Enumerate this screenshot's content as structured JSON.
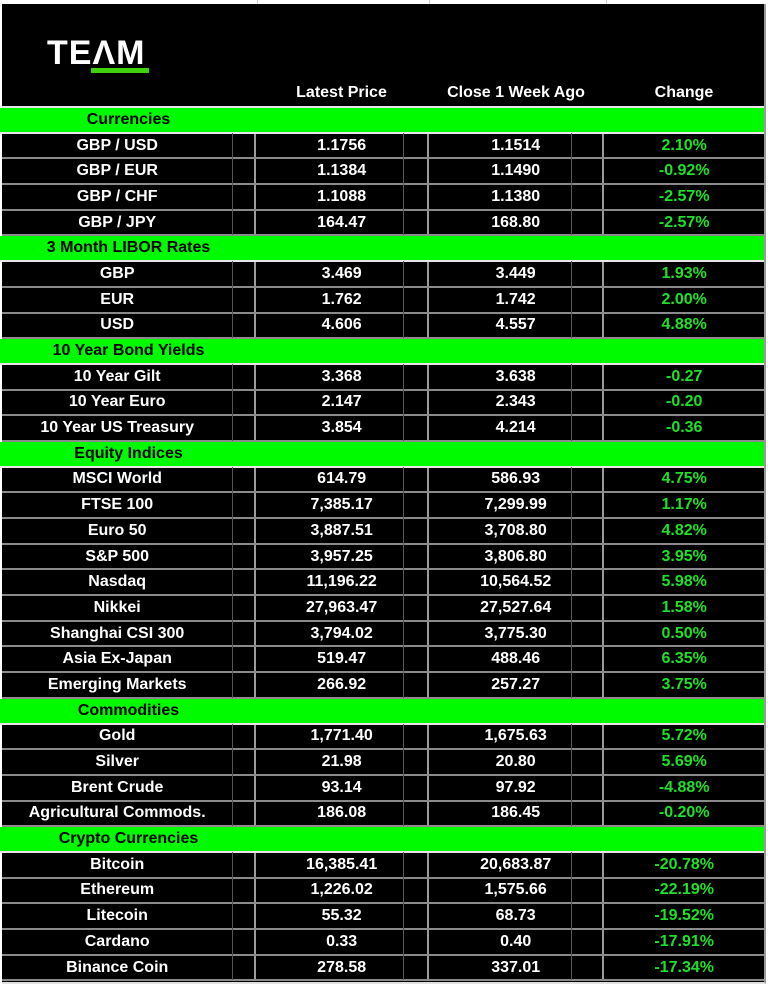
{
  "brand": {
    "logo_text": "TEΛM",
    "underline_color": "#3dd20c"
  },
  "colors": {
    "background": "#000000",
    "section_green": "#00fa00",
    "change_green": "#1ee128",
    "text_white": "#ffffff"
  },
  "chart_data": {
    "type": "table",
    "columns": [
      "",
      "Latest Price",
      "Close 1 Week Ago",
      "Change"
    ],
    "sections": [
      {
        "title": "Currencies",
        "rows": [
          {
            "label": "GBP / USD",
            "latest": "1.1756",
            "week": "1.1514",
            "change": "2.10%"
          },
          {
            "label": "GBP / EUR",
            "latest": "1.1384",
            "week": "1.1490",
            "change": "-0.92%"
          },
          {
            "label": "GBP / CHF",
            "latest": "1.1088",
            "week": "1.1380",
            "change": "-2.57%"
          },
          {
            "label": "GBP / JPY",
            "latest": "164.47",
            "week": "168.80",
            "change": "-2.57%"
          }
        ]
      },
      {
        "title": "3 Month LIBOR Rates",
        "rows": [
          {
            "label": "GBP",
            "latest": "3.469",
            "week": "3.449",
            "change": "1.93%"
          },
          {
            "label": "EUR",
            "latest": "1.762",
            "week": "1.742",
            "change": "2.00%"
          },
          {
            "label": "USD",
            "latest": "4.606",
            "week": "4.557",
            "change": "4.88%"
          }
        ]
      },
      {
        "title": "10 Year Bond Yields",
        "rows": [
          {
            "label": "10 Year Gilt",
            "latest": "3.368",
            "week": "3.638",
            "change": "-0.27"
          },
          {
            "label": "10 Year Euro",
            "latest": "2.147",
            "week": "2.343",
            "change": "-0.20"
          },
          {
            "label": "10 Year US Treasury",
            "latest": "3.854",
            "week": "4.214",
            "change": "-0.36"
          }
        ]
      },
      {
        "title": "Equity Indices",
        "rows": [
          {
            "label": "MSCI World",
            "latest": "614.79",
            "week": "586.93",
            "change": "4.75%"
          },
          {
            "label": "FTSE 100",
            "latest": "7,385.17",
            "week": "7,299.99",
            "change": "1.17%"
          },
          {
            "label": "Euro 50",
            "latest": "3,887.51",
            "week": "3,708.80",
            "change": "4.82%"
          },
          {
            "label": "S&P 500",
            "latest": "3,957.25",
            "week": "3,806.80",
            "change": "3.95%"
          },
          {
            "label": "Nasdaq",
            "latest": "11,196.22",
            "week": "10,564.52",
            "change": "5.98%"
          },
          {
            "label": "Nikkei",
            "latest": "27,963.47",
            "week": "27,527.64",
            "change": "1.58%"
          },
          {
            "label": "Shanghai CSI 300",
            "latest": "3,794.02",
            "week": "3,775.30",
            "change": "0.50%"
          },
          {
            "label": "Asia Ex-Japan",
            "latest": "519.47",
            "week": "488.46",
            "change": "6.35%"
          },
          {
            "label": "Emerging Markets",
            "latest": "266.92",
            "week": "257.27",
            "change": "3.75%"
          }
        ]
      },
      {
        "title": "Commodities",
        "rows": [
          {
            "label": "Gold",
            "latest": "1,771.40",
            "week": "1,675.63",
            "change": "5.72%"
          },
          {
            "label": "Silver",
            "latest": "21.98",
            "week": "20.80",
            "change": "5.69%"
          },
          {
            "label": "Brent Crude",
            "latest": "93.14",
            "week": "97.92",
            "change": "-4.88%"
          },
          {
            "label": "Agricultural Commods.",
            "latest": "186.08",
            "week": "186.45",
            "change": "-0.20%"
          }
        ]
      },
      {
        "title": "Crypto Currencies",
        "rows": [
          {
            "label": "Bitcoin",
            "latest": "16,385.41",
            "week": "20,683.87",
            "change": "-20.78%"
          },
          {
            "label": "Ethereum",
            "latest": "1,226.02",
            "week": "1,575.66",
            "change": "-22.19%"
          },
          {
            "label": "Litecoin",
            "latest": "55.32",
            "week": "68.73",
            "change": "-19.52%"
          },
          {
            "label": "Cardano",
            "latest": "0.33",
            "week": "0.40",
            "change": "-17.91%"
          },
          {
            "label": "Binance Coin",
            "latest": "278.58",
            "week": "337.01",
            "change": "-17.34%"
          }
        ]
      }
    ]
  }
}
